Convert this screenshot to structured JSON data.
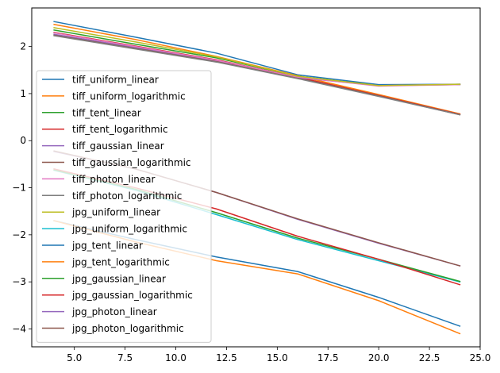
{
  "chart_data": {
    "type": "line",
    "title": "",
    "xlabel": "",
    "ylabel": "",
    "xlim": [
      2.9,
      25.0
    ],
    "ylim": [
      -4.38,
      2.82
    ],
    "xticks": [
      5.0,
      7.5,
      10.0,
      12.5,
      15.0,
      17.5,
      20.0,
      22.5,
      25.0
    ],
    "xtick_labels": [
      "5.0",
      "7.5",
      "10.0",
      "12.5",
      "15.0",
      "17.5",
      "20.0",
      "22.5",
      "25.0"
    ],
    "yticks": [
      -4,
      -3,
      -2,
      -1,
      0,
      1,
      2
    ],
    "ytick_labels": [
      "−4",
      "−3",
      "−2",
      "−1",
      "0",
      "1",
      "2"
    ],
    "grid": false,
    "legend_position": "left",
    "x": [
      4,
      8,
      12,
      16,
      20,
      24
    ],
    "series": [
      {
        "name": "tiff_uniform_linear",
        "color": "#1f77b4",
        "values": [
          2.53,
          2.2,
          1.86,
          1.4,
          1.19,
          1.2
        ]
      },
      {
        "name": "tiff_uniform_logarithmic",
        "color": "#ff7f0e",
        "values": [
          2.47,
          2.15,
          1.79,
          1.38,
          0.98,
          0.57
        ]
      },
      {
        "name": "tiff_tent_linear",
        "color": "#2ca02c",
        "values": [
          2.35,
          2.05,
          1.76,
          1.37,
          1.17,
          1.19
        ]
      },
      {
        "name": "tiff_tent_logarithmic",
        "color": "#d62728",
        "values": [
          2.3,
          2.01,
          1.72,
          1.35,
          0.96,
          0.56
        ]
      },
      {
        "name": "tiff_gaussian_linear",
        "color": "#9467bd",
        "values": [
          2.26,
          1.98,
          1.7,
          1.34,
          1.17,
          1.2
        ]
      },
      {
        "name": "tiff_gaussian_logarithmic",
        "color": "#8c564b",
        "values": [
          2.24,
          1.96,
          1.68,
          1.33,
          0.95,
          0.55
        ]
      },
      {
        "name": "tiff_photon_linear",
        "color": "#e377c2",
        "values": [
          2.29,
          2.0,
          1.71,
          1.35,
          1.16,
          1.19
        ]
      },
      {
        "name": "tiff_photon_logarithmic",
        "color": "#7f7f7f",
        "values": [
          2.23,
          1.95,
          1.67,
          1.32,
          0.94,
          0.55
        ]
      },
      {
        "name": "jpg_uniform_linear",
        "color": "#bcbd22",
        "values": [
          2.4,
          2.1,
          1.78,
          1.37,
          1.17,
          1.2
        ]
      },
      {
        "name": "jpg_uniform_logarithmic",
        "color": "#17becf",
        "values": [
          -0.63,
          -1.05,
          -1.57,
          -2.1,
          -2.55,
          -3.0
        ]
      },
      {
        "name": "jpg_tent_linear",
        "color": "#1f77b4",
        "values": [
          -1.7,
          -2.1,
          -2.47,
          -2.78,
          -3.33,
          -3.94
        ]
      },
      {
        "name": "jpg_tent_logarithmic",
        "color": "#ff7f0e",
        "values": [
          -1.7,
          -2.15,
          -2.55,
          -2.83,
          -3.4,
          -4.1
        ]
      },
      {
        "name": "jpg_gaussian_linear",
        "color": "#2ca02c",
        "values": [
          -0.62,
          -1.03,
          -1.53,
          -2.07,
          -2.52,
          -2.99
        ]
      },
      {
        "name": "jpg_gaussian_logarithmic",
        "color": "#d62728",
        "values": [
          -0.6,
          -1.0,
          -1.45,
          -2.03,
          -2.52,
          -3.06
        ]
      },
      {
        "name": "jpg_photon_linear",
        "color": "#9467bd",
        "values": [
          -0.23,
          -0.6,
          -1.1,
          -1.67,
          -2.18,
          -2.66
        ]
      },
      {
        "name": "jpg_photon_logarithmic",
        "color": "#8c564b",
        "values": [
          -0.22,
          -0.6,
          -1.1,
          -1.66,
          -2.17,
          -2.66
        ]
      }
    ]
  }
}
